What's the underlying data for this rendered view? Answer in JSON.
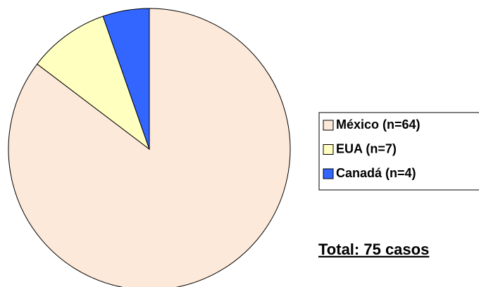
{
  "chart_data": {
    "type": "pie",
    "categories": [
      "México (n=64)",
      "EUA (n=7)",
      "Canadá (n=4)"
    ],
    "values": [
      64,
      7,
      4
    ],
    "colors": [
      "#fde9d9",
      "#ffffc0",
      "#3366ff"
    ],
    "annotation": "Total: 75 casos"
  }
}
